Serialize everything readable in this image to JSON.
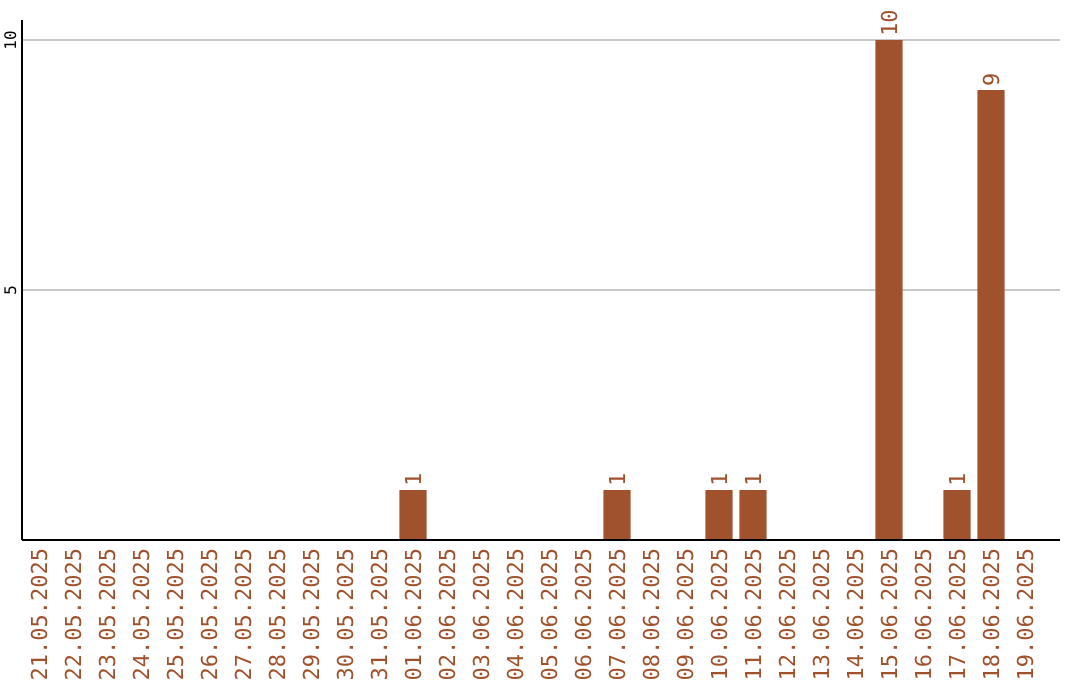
{
  "chart_data": {
    "type": "bar",
    "categories": [
      "21.05.2025",
      "22.05.2025",
      "23.05.2025",
      "24.05.2025",
      "25.05.2025",
      "26.05.2025",
      "27.05.2025",
      "28.05.2025",
      "29.05.2025",
      "30.05.2025",
      "31.05.2025",
      "01.06.2025",
      "02.06.2025",
      "03.06.2025",
      "04.06.2025",
      "05.06.2025",
      "06.06.2025",
      "07.06.2025",
      "08.06.2025",
      "09.06.2025",
      "10.06.2025",
      "11.06.2025",
      "12.06.2025",
      "13.06.2025",
      "14.06.2025",
      "15.06.2025",
      "16.06.2025",
      "17.06.2025",
      "18.06.2025",
      "19.06.2025"
    ],
    "values": [
      0,
      0,
      0,
      0,
      0,
      0,
      0,
      0,
      0,
      0,
      0,
      1,
      0,
      0,
      0,
      0,
      0,
      1,
      0,
      0,
      1,
      1,
      0,
      0,
      0,
      10,
      0,
      1,
      9,
      0
    ],
    "value_labels": [
      null,
      null,
      null,
      null,
      null,
      null,
      null,
      null,
      null,
      null,
      null,
      "1",
      null,
      null,
      null,
      null,
      null,
      "1",
      null,
      null,
      "1",
      "1",
      null,
      null,
      null,
      "10",
      null,
      "1",
      "9",
      null
    ],
    "color": "#a0522d",
    "ylim": [
      0,
      10.4
    ],
    "yticks": [
      5,
      10
    ],
    "grid": "y"
  }
}
